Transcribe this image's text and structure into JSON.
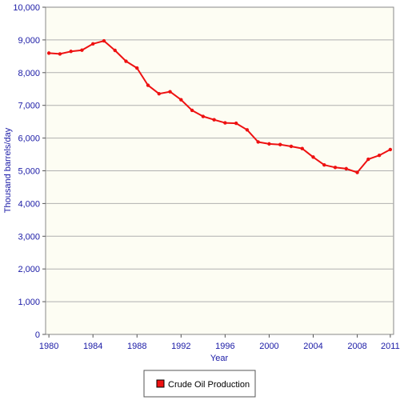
{
  "chart_data": {
    "type": "line",
    "title": "",
    "xlabel": "Year",
    "ylabel": "Thousand barrels/day",
    "xlim": [
      1980,
      2011
    ],
    "ylim": [
      0,
      10000
    ],
    "x_ticks": [
      1980,
      1984,
      1988,
      1992,
      1996,
      2000,
      2004,
      2008,
      2011
    ],
    "y_ticks": [
      0,
      1000,
      2000,
      3000,
      4000,
      5000,
      6000,
      7000,
      8000,
      9000,
      10000
    ],
    "y_tick_labels": [
      "0",
      "1,000",
      "2,000",
      "3,000",
      "4,000",
      "5,000",
      "6,000",
      "7,000",
      "8,000",
      "9,000",
      "10,000"
    ],
    "grid": "horizontal",
    "legend_position": "bottom-center",
    "series": [
      {
        "name": "Crude Oil Production",
        "color": "#ee1111",
        "x": [
          1980,
          1981,
          1982,
          1983,
          1984,
          1985,
          1986,
          1987,
          1988,
          1989,
          1990,
          1991,
          1992,
          1993,
          1994,
          1995,
          1996,
          1997,
          1998,
          1999,
          2000,
          2001,
          2002,
          2003,
          2004,
          2005,
          2006,
          2007,
          2008,
          2009,
          2010,
          2011
        ],
        "values": [
          8597,
          8572,
          8649,
          8688,
          8879,
          8971,
          8680,
          8349,
          8140,
          7613,
          7355,
          7417,
          7171,
          6847,
          6662,
          6560,
          6465,
          6452,
          6252,
          5881,
          5822,
          5801,
          5746,
          5681,
          5419,
          5178,
          5102,
          5064,
          4950,
          5353,
          5471,
          5650
        ]
      }
    ]
  },
  "colors": {
    "plot_background": "#fdfdf3",
    "axis_text": "#1a1aa6",
    "gridline": "#b0b0b0"
  }
}
